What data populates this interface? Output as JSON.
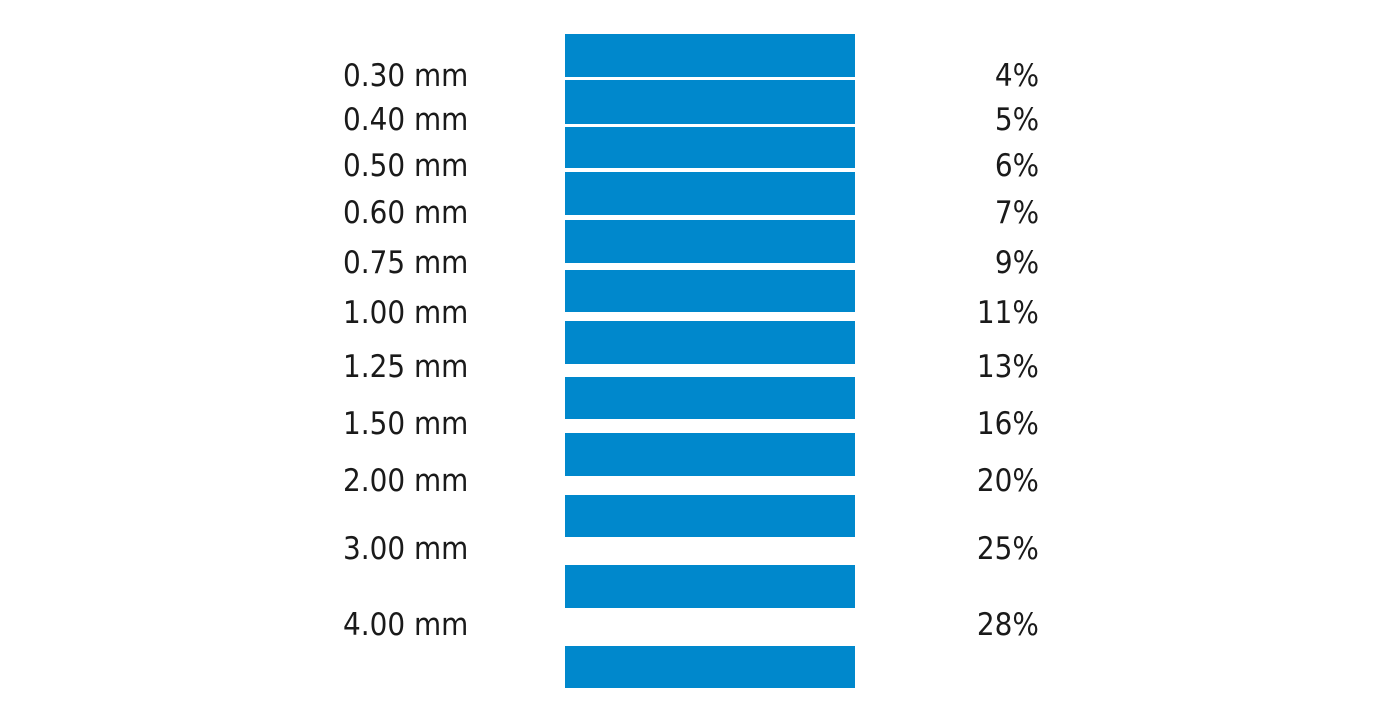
{
  "bar_color": "#0088cc",
  "rows": [
    {
      "gap": "0.30 mm",
      "percent": "4%"
    },
    {
      "gap": "0.40 mm",
      "percent": "5%"
    },
    {
      "gap": "0.50 mm",
      "percent": "6%"
    },
    {
      "gap": "0.60 mm",
      "percent": "7%"
    },
    {
      "gap": "0.75 mm",
      "percent": "9%"
    },
    {
      "gap": "1.00 mm",
      "percent": "11%"
    },
    {
      "gap": "1.25 mm",
      "percent": "13%"
    },
    {
      "gap": "1.50 mm",
      "percent": "16%"
    },
    {
      "gap": "2.00 mm",
      "percent": "20%"
    },
    {
      "gap": "3.00 mm",
      "percent": "25%"
    },
    {
      "gap": "4.00 mm",
      "percent": "28%"
    }
  ]
}
